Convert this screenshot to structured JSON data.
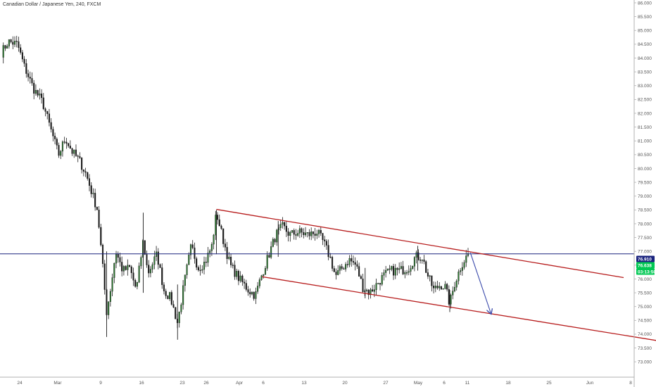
{
  "chart_data": {
    "type": "candlestick",
    "title": "Canadian Dollar / Japanese Yen, 240, FXCM",
    "xlabel": "",
    "ylabel": "",
    "ylim": [
      72.75,
      86.0
    ],
    "grid": false,
    "y_ticks": [
      "86.000",
      "85.500",
      "85.000",
      "84.500",
      "84.000",
      "83.500",
      "83.000",
      "82.500",
      "82.000",
      "81.500",
      "81.000",
      "80.500",
      "80.000",
      "79.500",
      "79.000",
      "78.500",
      "78.000",
      "77.500",
      "77.000",
      "76.500",
      "76.000",
      "75.500",
      "75.000",
      "74.500",
      "74.000",
      "73.500",
      "73.000"
    ],
    "x_ticks": [
      "24",
      "Mar",
      "9",
      "16",
      "23",
      "26",
      "Apr",
      "6",
      "13",
      "20",
      "27",
      "May",
      "6",
      "11",
      "18",
      "25",
      "Jun",
      "8"
    ],
    "price_tags": [
      {
        "label": "76.910",
        "value": 76.91,
        "color": "#1a237e",
        "text_color": "#ffffff"
      },
      {
        "label": "76.638",
        "value": 76.638,
        "color": "#00c853",
        "text_color": "#ffffff"
      },
      {
        "label": "03:13:50",
        "value": 76.32,
        "color": "#00c853",
        "text_color": "#ffffff"
      }
    ],
    "colors": {
      "up": "#2e7d32",
      "down": "#1b1b1b",
      "channel": "#b71c1c",
      "level": "#1a237e",
      "arrow": "#3949ab"
    },
    "candle_path": [
      {
        "t": 0,
        "p": 84.2
      },
      {
        "t": 1.5,
        "p": 84.6
      },
      {
        "t": 3.5,
        "p": 84.5
      },
      {
        "t": 5,
        "p": 83.7
      },
      {
        "t": 7,
        "p": 82.9
      },
      {
        "t": 9,
        "p": 82.4
      },
      {
        "t": 11,
        "p": 81.3
      },
      {
        "t": 12.5,
        "p": 80.5
      },
      {
        "t": 14,
        "p": 81.1
      },
      {
        "t": 15.5,
        "p": 80.6
      },
      {
        "t": 17,
        "p": 80.3
      },
      {
        "t": 18.5,
        "p": 79.8
      },
      {
        "t": 20,
        "p": 79.0
      },
      {
        "t": 21,
        "p": 78.5
      },
      {
        "t": 22,
        "p": 76.7
      },
      {
        "t": 23,
        "p": 74.8
      },
      {
        "t": 24,
        "p": 75.8
      },
      {
        "t": 25,
        "p": 77.0
      },
      {
        "t": 26.5,
        "p": 76.3
      },
      {
        "t": 28,
        "p": 76.4
      },
      {
        "t": 29.5,
        "p": 75.6
      },
      {
        "t": 31,
        "p": 77.4
      },
      {
        "t": 32,
        "p": 76.2
      },
      {
        "t": 34,
        "p": 76.9
      },
      {
        "t": 35.5,
        "p": 75.6
      },
      {
        "t": 37,
        "p": 75.3
      },
      {
        "t": 38.5,
        "p": 74.4
      },
      {
        "t": 40,
        "p": 75.9
      },
      {
        "t": 41.5,
        "p": 77.2
      },
      {
        "t": 43,
        "p": 76.4
      },
      {
        "t": 44.5,
        "p": 76.6
      },
      {
        "t": 46,
        "p": 77.2
      },
      {
        "t": 47,
        "p": 78.4
      },
      {
        "t": 48.5,
        "p": 77.4
      },
      {
        "t": 50,
        "p": 76.5
      },
      {
        "t": 52,
        "p": 76.0
      },
      {
        "t": 54,
        "p": 75.6
      },
      {
        "t": 55.5,
        "p": 75.4
      },
      {
        "t": 57,
        "p": 76.2
      },
      {
        "t": 58.5,
        "p": 76.9
      },
      {
        "t": 60,
        "p": 77.6
      },
      {
        "t": 61.5,
        "p": 77.9
      },
      {
        "t": 63,
        "p": 77.6
      },
      {
        "t": 65,
        "p": 77.7
      },
      {
        "t": 67,
        "p": 77.6
      },
      {
        "t": 69,
        "p": 77.7
      },
      {
        "t": 70.5,
        "p": 77.3
      },
      {
        "t": 72,
        "p": 76.7
      },
      {
        "t": 73,
        "p": 76.1
      },
      {
        "t": 74.5,
        "p": 76.4
      },
      {
        "t": 76,
        "p": 76.7
      },
      {
        "t": 77.5,
        "p": 76.5
      },
      {
        "t": 79,
        "p": 75.7
      },
      {
        "t": 80.5,
        "p": 75.5
      },
      {
        "t": 82,
        "p": 75.8
      },
      {
        "t": 83.5,
        "p": 76.1
      },
      {
        "t": 85,
        "p": 76.3
      },
      {
        "t": 87,
        "p": 76.3
      },
      {
        "t": 89,
        "p": 76.4
      },
      {
        "t": 90.5,
        "p": 76.8
      },
      {
        "t": 92,
        "p": 76.8
      },
      {
        "t": 93,
        "p": 76.2
      },
      {
        "t": 94.5,
        "p": 75.6
      },
      {
        "t": 96,
        "p": 75.8
      },
      {
        "t": 97,
        "p": 75.7
      },
      {
        "t": 98,
        "p": 75.1
      },
      {
        "t": 99,
        "p": 75.8
      },
      {
        "t": 100.5,
        "p": 76.5
      },
      {
        "t": 102,
        "p": 76.9
      }
    ],
    "spikes": [
      {
        "t": 23,
        "low": 73.9,
        "high": 77.0
      },
      {
        "t": 31,
        "low": 75.5,
        "high": 78.4
      },
      {
        "t": 38.5,
        "low": 73.8,
        "high": 75.8
      },
      {
        "t": 47,
        "low": 76.9,
        "high": 78.5
      },
      {
        "t": 60.5,
        "low": 76.8,
        "high": 78.1
      },
      {
        "t": 79.5,
        "low": 75.3,
        "high": 76.4
      },
      {
        "t": 91,
        "low": 76.3,
        "high": 77.2
      },
      {
        "t": 98,
        "low": 74.8,
        "high": 75.6
      }
    ],
    "channel_upper": {
      "t1": 47,
      "p1": 78.52,
      "t2": 136,
      "p2": 76.05
    },
    "channel_lower": {
      "t1": 57,
      "p1": 76.08,
      "t2": 144,
      "p2": 73.75
    },
    "level": 76.91,
    "arrow": {
      "t1": 102.5,
      "p1": 76.95,
      "t2": 107,
      "p2": 74.75
    }
  }
}
